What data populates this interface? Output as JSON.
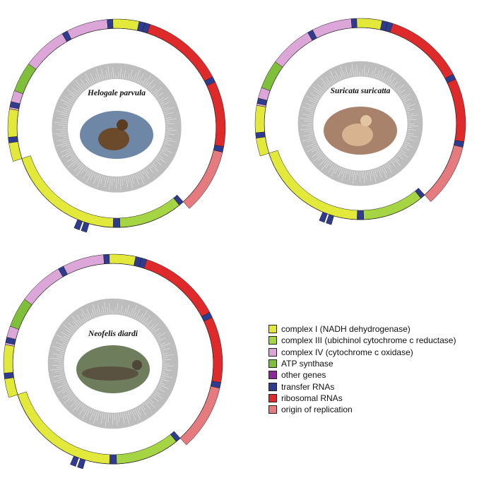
{
  "colors": {
    "complex_i": "#e3e93a",
    "complex_iii": "#a5d543",
    "complex_iv": "#dca7d8",
    "atp_synthase": "#7fbf3a",
    "other_genes": "#8a2a96",
    "trna": "#2f3b8f",
    "rrna": "#de2a2a",
    "origin": "#e57a7f"
  },
  "genomes": [
    {
      "id": "helogale",
      "species": "Helogale parvula",
      "photo_icon": "dwarf-mongoose-photo"
    },
    {
      "id": "suricata",
      "species": "Suricata suricatta",
      "photo_icon": "meerkat-photo"
    },
    {
      "id": "neofelis",
      "species": "Neofelis diardi",
      "photo_icon": "clouded-leopard-photo"
    }
  ],
  "legend": [
    {
      "label": "complex I (NADH dehydrogenase)",
      "color": "#e3e93a"
    },
    {
      "label": "complex III (ubichinol cytochrome c reductase)",
      "color": "#a5d543"
    },
    {
      "label": "complex IV (cytochrome c oxidase)",
      "color": "#dca7d8"
    },
    {
      "label": "ATP synthase",
      "color": "#7fbf3a"
    },
    {
      "label": "other genes",
      "color": "#8a2a96"
    },
    {
      "label": "transfer RNAs",
      "color": "#2f3b8f"
    },
    {
      "label": "ribosomal RNAs",
      "color": "#de2a2a"
    },
    {
      "label": "origin of replication",
      "color": "#e57a7f"
    }
  ]
}
